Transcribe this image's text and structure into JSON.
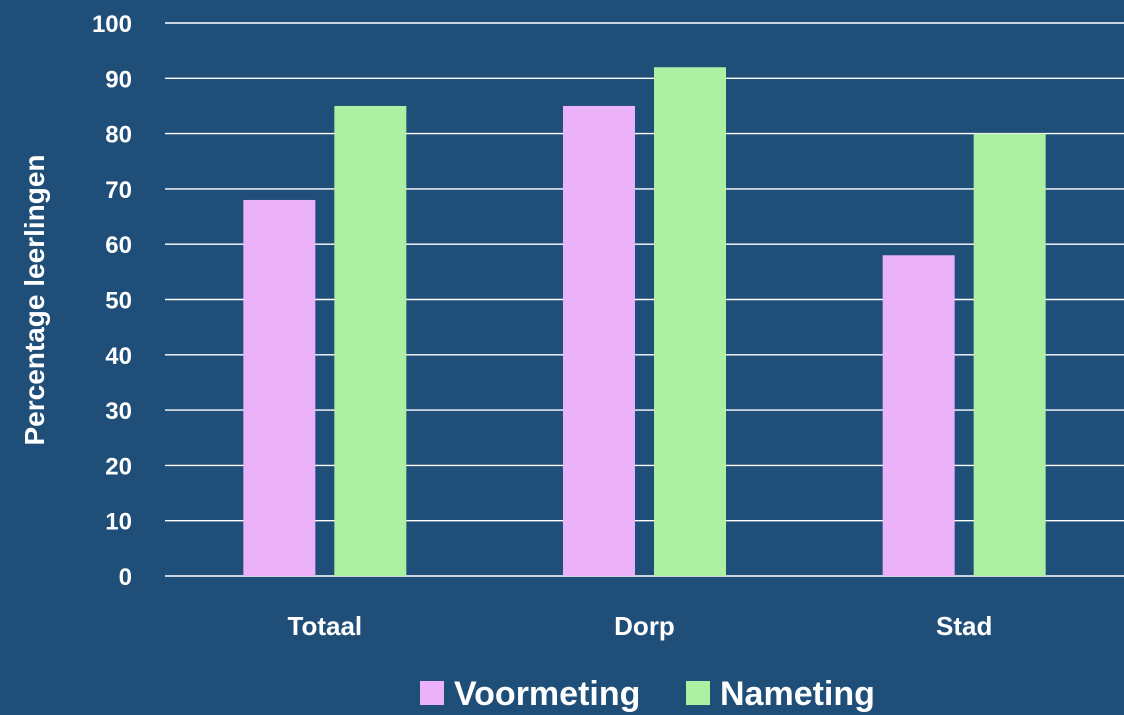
{
  "colors": {
    "background": "#1f4e79",
    "gridline": "#ffffff",
    "text": "#ffffff"
  },
  "chart_data": {
    "type": "bar",
    "categories": [
      "Totaal",
      "Dorp",
      "Stad"
    ],
    "series": [
      {
        "name": "Voormeting",
        "color": "#ebb1f9",
        "values": [
          68,
          85,
          58
        ]
      },
      {
        "name": "Nameting",
        "color": "#adefa3",
        "values": [
          85,
          92,
          80
        ]
      }
    ],
    "xlabel": "",
    "ylabel": "Percentage leerlingen",
    "ylim": [
      0,
      100
    ],
    "yticks": [
      "0",
      "10",
      "20",
      "30",
      "40",
      "50",
      "60",
      "70",
      "80",
      "90",
      "100"
    ],
    "grid": true,
    "legend": "bottom"
  }
}
